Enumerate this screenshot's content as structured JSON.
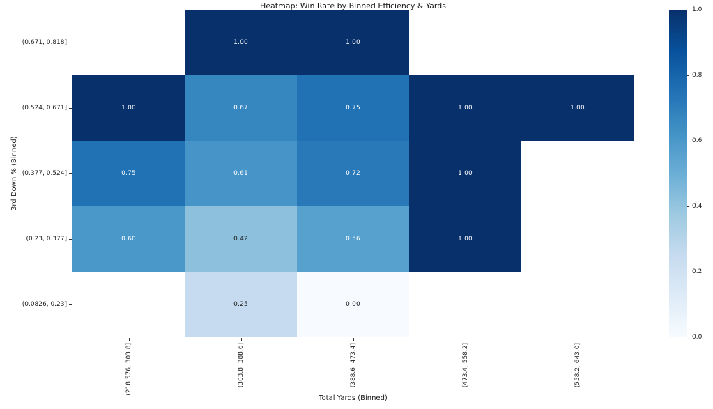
{
  "chart_data": {
    "type": "heatmap",
    "title": "Heatmap: Win Rate by Binned Efficiency & Yards",
    "xlabel": "Total Yards (Binned)",
    "ylabel": "3rd Down % (Binned)",
    "x_categories": [
      "(218.576, 303.8]",
      "(303.8, 388.6]",
      "(388.6, 473.4]",
      "(473.4, 558.2]",
      "(558.2, 643.0]"
    ],
    "y_categories": [
      "(0.671, 0.818]",
      "(0.524, 0.671]",
      "(0.377, 0.524]",
      "(0.23, 0.377]",
      "(0.0826, 0.23]"
    ],
    "values": [
      [
        null,
        1.0,
        1.0,
        null,
        null
      ],
      [
        1.0,
        0.67,
        0.75,
        1.0,
        1.0
      ],
      [
        0.75,
        0.61,
        0.72,
        1.0,
        null
      ],
      [
        0.6,
        0.42,
        0.56,
        1.0,
        null
      ],
      [
        null,
        0.25,
        0.0,
        null,
        null
      ]
    ],
    "value_decimals": 2,
    "colormap": "Blues",
    "colormap_anchors": [
      {
        "pos": 0.0,
        "color": "#f7fbff"
      },
      {
        "pos": 0.125,
        "color": "#deebf7"
      },
      {
        "pos": 0.25,
        "color": "#c6dbef"
      },
      {
        "pos": 0.375,
        "color": "#9ecae1"
      },
      {
        "pos": 0.5,
        "color": "#6baed6"
      },
      {
        "pos": 0.625,
        "color": "#4292c6"
      },
      {
        "pos": 0.75,
        "color": "#2171b5"
      },
      {
        "pos": 0.875,
        "color": "#08519c"
      },
      {
        "pos": 1.0,
        "color": "#08306b"
      }
    ],
    "annotation_text_color_dark_cells": "#ffffff",
    "annotation_text_color_light_cells": "#1a1a1a",
    "colorbar": {
      "position": "right",
      "min": 0.0,
      "max": 1.0,
      "ticks": [
        "1.0",
        "0.8",
        "0.6",
        "0.4",
        "0.2",
        "0.0"
      ]
    },
    "grid": false,
    "empty_cell_color": "#ffffff"
  }
}
